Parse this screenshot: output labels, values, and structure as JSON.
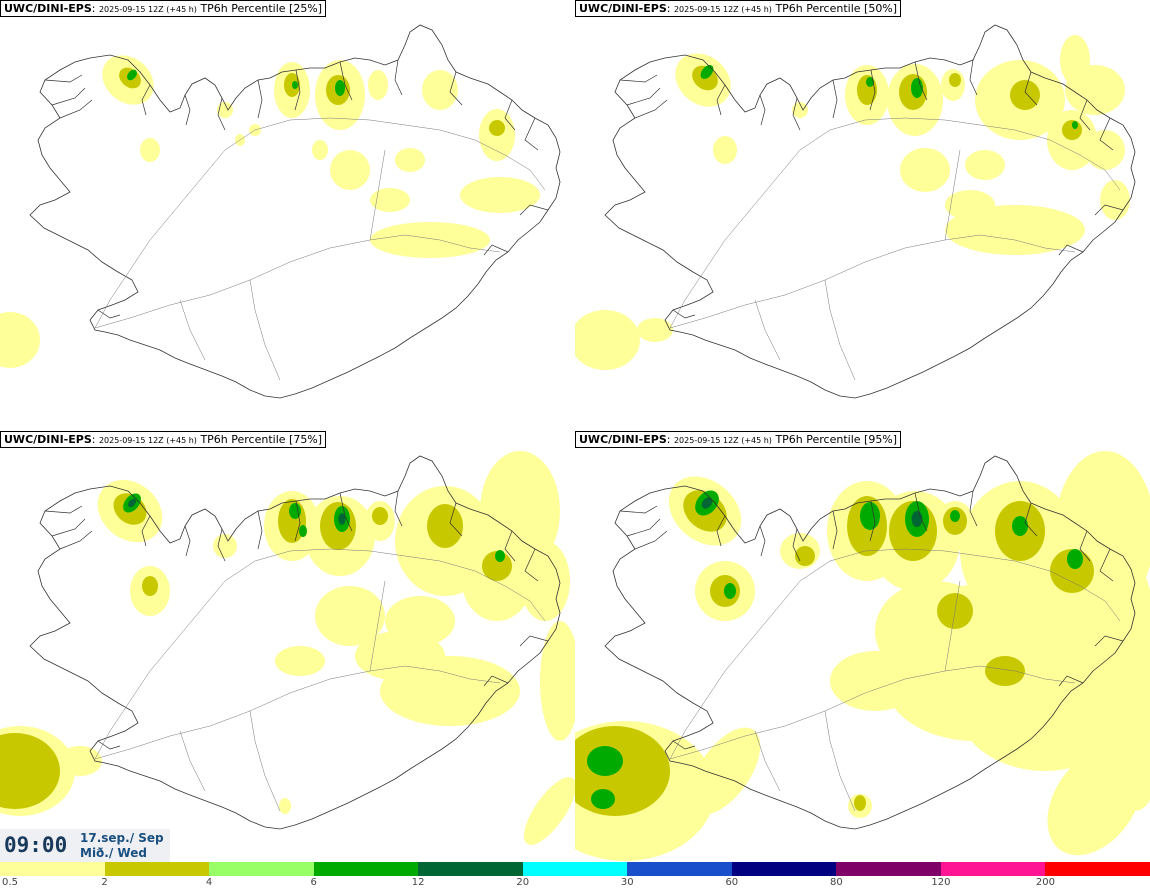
{
  "panels": [
    {
      "model": "UWC/DINI-EPS",
      "run": "2025-09-15 12Z (+45 h)",
      "product": "TP6h Percentile [25%]"
    },
    {
      "model": "UWC/DINI-EPS",
      "run": "2025-09-15 12Z (+45 h)",
      "product": "TP6h Percentile [50%]"
    },
    {
      "model": "UWC/DINI-EPS",
      "run": "2025-09-15 12Z (+45 h)",
      "product": "TP6h Percentile [75%]"
    },
    {
      "model": "UWC/DINI-EPS",
      "run": "2025-09-15 12Z (+45 h)",
      "product": "TP6h Percentile [95%]"
    }
  ],
  "valid": {
    "time": "09:00",
    "date": "17.sep./ Sep",
    "weekday": "Mið./ Wed"
  },
  "colorbar": {
    "colors": [
      "#ffff99",
      "#c8c800",
      "#99ff66",
      "#00aa00",
      "#006633",
      "#00ffff",
      "#1a4fcc",
      "#000080",
      "#7f0066",
      "#ff1493",
      "#ff0000"
    ],
    "ticks": [
      "0.5",
      "2",
      "4",
      "6",
      "12",
      "20",
      "30",
      "60",
      "80",
      "120",
      "200"
    ]
  }
}
